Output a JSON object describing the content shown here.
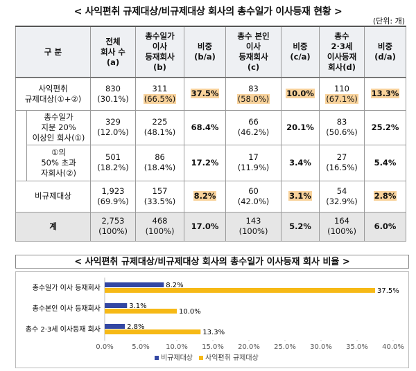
{
  "header": {
    "title": "< 사익편취 규제대상/비규제대상 회사의 총수일가 이사등재 현황 >",
    "unit": "(단위: 개)"
  },
  "table": {
    "columns": [
      [
        "구 분"
      ],
      [
        "전체",
        "회사 수",
        "(a)"
      ],
      [
        "총수일가",
        "이사",
        "등재회사",
        "(b)"
      ],
      [
        "비중",
        "(b/a)"
      ],
      [
        "총수 본인",
        "이사",
        "등재회사",
        "(c)"
      ],
      [
        "비중",
        "(c/a)"
      ],
      [
        "총수",
        "2·3세",
        "이사등재",
        "회사(d)"
      ],
      [
        "비중",
        "(d/a)"
      ]
    ],
    "rows": [
      [
        [
          "사익편취",
          "규제대상(①+②)"
        ],
        [
          "830",
          "(30.1%)"
        ],
        [
          "311",
          "(66.5%)"
        ],
        [
          "37.5%"
        ],
        [
          "83",
          "(58.0%)"
        ],
        [
          "10.0%"
        ],
        [
          "110",
          "(67.1%)"
        ],
        [
          "13.3%"
        ]
      ],
      [
        [
          "총수일가",
          "지분 20%",
          "이상인 회사(①)"
        ],
        [
          "329",
          "(12.0%)"
        ],
        [
          "225",
          "(48.1%)"
        ],
        [
          "68.4%"
        ],
        [
          "66",
          "(46.2%)"
        ],
        [
          "20.1%"
        ],
        [
          "83",
          "(50.6%)"
        ],
        [
          "25.2%"
        ]
      ],
      [
        [
          "①의",
          "50% 초과",
          "자회사(②)"
        ],
        [
          "501",
          "(18.2%)"
        ],
        [
          "86",
          "(18.4%)"
        ],
        [
          "17.2%"
        ],
        [
          "17",
          "(11.9%)"
        ],
        [
          "3.4%"
        ],
        [
          "27",
          "(16.5%)"
        ],
        [
          "5.4%"
        ]
      ],
      [
        [
          "비규제대상"
        ],
        [
          "1,923",
          "(69.9%)"
        ],
        [
          "157",
          "(33.5%)"
        ],
        [
          "8.2%"
        ],
        [
          "60",
          "(42.0%)"
        ],
        [
          "3.1%"
        ],
        [
          "54",
          "(32.9%)"
        ],
        [
          "2.8%"
        ]
      ],
      [
        [
          "계"
        ],
        [
          "2,753",
          "(100%)"
        ],
        [
          "468",
          "(100%)"
        ],
        [
          "17.0%"
        ],
        [
          "143",
          "(100%)"
        ],
        [
          "5.2%"
        ],
        [
          "164",
          "(100%)"
        ],
        [
          "6.0%"
        ]
      ]
    ]
  },
  "chart_data": {
    "type": "bar",
    "orientation": "horizontal",
    "title": "< 사익편취 규제대상/비규제대상 회사의 총수일가 이사등재 회사 비율 >",
    "categories": [
      "총수일가 이사 등재회사",
      "총수본인 이사 등재회사",
      "총수 2·3세 이사등재 회사"
    ],
    "series": [
      {
        "name": "비규제대상",
        "color": "#3347a3",
        "values": [
          8.2,
          3.1,
          2.8
        ],
        "value_labels": [
          "8.2%",
          "3.1%",
          "2.8%"
        ]
      },
      {
        "name": "사익편취 규제대상",
        "color": "#f6b916",
        "values": [
          37.5,
          10.0,
          13.3
        ],
        "value_labels": [
          "37.5%",
          "10.0%",
          "13.3%"
        ]
      }
    ],
    "xlim": [
      0,
      40
    ],
    "xticks": [
      {
        "value": 0,
        "label": "0.0%"
      },
      {
        "value": 5,
        "label": "5.0%"
      },
      {
        "value": 10,
        "label": "10.0%"
      },
      {
        "value": 15,
        "label": "15.0%"
      },
      {
        "value": 20,
        "label": "20.0%"
      },
      {
        "value": 25,
        "label": "25.0%"
      },
      {
        "value": 30,
        "label": "30.0%"
      },
      {
        "value": 35,
        "label": "35.0%"
      },
      {
        "value": 40,
        "label": "40.0%"
      }
    ],
    "legend": "bottom"
  }
}
